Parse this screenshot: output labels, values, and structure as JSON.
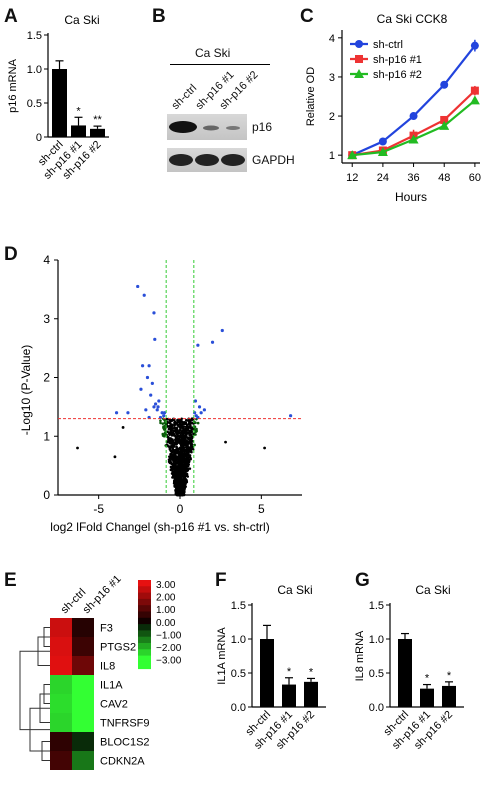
{
  "panels": {
    "A": {
      "letter": "A"
    },
    "B": {
      "letter": "B"
    },
    "C": {
      "letter": "C"
    },
    "D": {
      "letter": "D"
    },
    "E": {
      "letter": "E"
    },
    "F": {
      "letter": "F"
    },
    "G": {
      "letter": "G"
    }
  },
  "blot": {
    "title": "Ca Ski",
    "lanes": [
      "sh-ctrl",
      "sh-p16 #1",
      "sh-p16 #2"
    ],
    "bands": [
      "p16",
      "GAPDH"
    ]
  },
  "colors": {
    "sh_ctrl": "#2244dd",
    "sh_p16_1": "#ee3333",
    "sh_p16_2": "#22bb22"
  },
  "chart_data": [
    {
      "id": "A",
      "type": "bar",
      "title": "Ca Ski",
      "ylabel": "p16 mRNA",
      "xlabel": "",
      "categories": [
        "sh-ctrl",
        "sh-p16 #1",
        "sh-p16 #2"
      ],
      "values": [
        1.0,
        0.17,
        0.12
      ],
      "errors": [
        0.12,
        0.12,
        0.04
      ],
      "significance": [
        "",
        "*",
        "**"
      ],
      "ylim": [
        0,
        1.5
      ],
      "yticks": [
        0,
        0.5,
        1.0,
        1.5
      ],
      "ytick_labels": [
        "0",
        "0.5",
        "1.0",
        "1.5"
      ]
    },
    {
      "id": "C",
      "type": "line",
      "title": "Ca Ski CCK8",
      "xlabel": "Hours",
      "ylabel": "Relative OD",
      "x": [
        12,
        24,
        36,
        48,
        60
      ],
      "xticks": [
        12,
        24,
        36,
        48,
        60
      ],
      "ylim": [
        1,
        4
      ],
      "yticks": [
        1,
        2,
        3,
        4
      ],
      "legend_position": "top-left",
      "series": [
        {
          "name": "sh-ctrl",
          "marker": "circle",
          "values": [
            1.0,
            1.35,
            2.0,
            2.8,
            3.8
          ],
          "errors": [
            0.03,
            0.05,
            0.06,
            0.07,
            0.15
          ]
        },
        {
          "name": "sh-p16 #1",
          "marker": "square",
          "values": [
            1.0,
            1.12,
            1.5,
            1.9,
            2.65
          ],
          "errors": [
            0.03,
            0.06,
            0.15,
            0.1,
            0.12
          ]
        },
        {
          "name": "sh-p16 #2",
          "marker": "triangle",
          "values": [
            1.0,
            1.08,
            1.4,
            1.75,
            2.4
          ],
          "errors": [
            0.03,
            0.05,
            0.06,
            0.07,
            0.08
          ]
        }
      ]
    },
    {
      "id": "D",
      "type": "scatter",
      "title": "",
      "xlabel": "log2 lFold Changel (sh-p16 #1 vs. sh-ctrl)",
      "ylabel": "-Log10 (P-Value)",
      "xlim": [
        -7.5,
        7.5
      ],
      "ylim": [
        0,
        4
      ],
      "xticks": [
        -5,
        0,
        5
      ],
      "yticks": [
        0,
        1,
        2,
        3,
        4
      ],
      "threshold_y": 1.3,
      "threshold_x": [
        -0.85,
        0.85
      ],
      "highlighted_points": [
        [
          -2.6,
          3.55
        ],
        [
          -2.2,
          3.4
        ],
        [
          -1.6,
          3.1
        ],
        [
          -1.9,
          2.2
        ],
        [
          -2.0,
          2.0
        ],
        [
          -2.3,
          2.2
        ],
        [
          -1.7,
          1.9
        ],
        [
          -1.8,
          1.7
        ],
        [
          -2.4,
          1.8
        ],
        [
          -1.5,
          1.55
        ],
        [
          -1.6,
          1.5
        ],
        [
          -1.4,
          1.45
        ],
        [
          -1.1,
          1.4
        ],
        [
          -1.0,
          1.35
        ],
        [
          -0.95,
          1.4
        ],
        [
          -1.2,
          1.32
        ],
        [
          -1.3,
          1.6
        ],
        [
          -1.35,
          1.5
        ],
        [
          -3.2,
          1.4
        ],
        [
          -3.9,
          1.4
        ],
        [
          -1.9,
          1.32
        ],
        [
          -2.1,
          1.45
        ],
        [
          -1.55,
          2.65
        ],
        [
          0.9,
          1.4
        ],
        [
          1.0,
          1.35
        ],
        [
          1.2,
          1.5
        ],
        [
          1.5,
          1.45
        ],
        [
          1.1,
          1.32
        ],
        [
          1.3,
          1.4
        ],
        [
          2.0,
          2.6
        ],
        [
          2.6,
          2.8
        ],
        [
          1.1,
          2.55
        ],
        [
          0.95,
          1.6
        ],
        [
          6.8,
          1.35
        ]
      ],
      "outlier_points": [
        [
          -6.3,
          0.8
        ],
        [
          -3.5,
          1.15
        ],
        [
          -4.0,
          0.65
        ],
        [
          2.8,
          0.9
        ],
        [
          5.2,
          0.8
        ]
      ]
    },
    {
      "id": "E",
      "type": "heatmap",
      "columns": [
        "sh-ctrl",
        "sh-p16 #1"
      ],
      "rows": [
        "F3",
        "PTGS2",
        "IL8",
        "IL1A",
        "CAV2",
        "TNFRSF9",
        "BLOC1S2",
        "CDKN2A"
      ],
      "values": [
        [
          2.6,
          0.3
        ],
        [
          2.8,
          0.6
        ],
        [
          2.9,
          1.3
        ],
        [
          -2.5,
          -3.0
        ],
        [
          -2.6,
          -3.0
        ],
        [
          -2.5,
          -3.0
        ],
        [
          0.4,
          -0.5
        ],
        [
          0.7,
          -1.4
        ]
      ],
      "color_scale": {
        "min": -3,
        "max": 3,
        "low": "#33ff33",
        "mid": "#000000",
        "high": "#ff1111"
      },
      "colorbar_labels": [
        "3.00",
        "2.00",
        "1.00",
        "0.00",
        "−1.00",
        "−2.00",
        "−3.00"
      ]
    },
    {
      "id": "F",
      "type": "bar",
      "title": "Ca Ski",
      "ylabel": "IL1A mRNA",
      "xlabel": "",
      "categories": [
        "sh-ctrl",
        "sh-p16 #1",
        "sh-p16 #2"
      ],
      "values": [
        1.0,
        0.33,
        0.37
      ],
      "errors": [
        0.2,
        0.1,
        0.05
      ],
      "significance": [
        "",
        "*",
        "*"
      ],
      "ylim": [
        0,
        1.5
      ],
      "yticks": [
        0,
        0.5,
        1.0,
        1.5
      ],
      "ytick_labels": [
        "0.0",
        "0.5",
        "1.0",
        "1.5"
      ]
    },
    {
      "id": "G",
      "type": "bar",
      "title": "Ca Ski",
      "ylabel": "IL8 mRNA",
      "xlabel": "",
      "categories": [
        "sh-ctrl",
        "sh-p16 #1",
        "sh-p16 #2"
      ],
      "values": [
        1.0,
        0.27,
        0.31
      ],
      "errors": [
        0.08,
        0.06,
        0.06
      ],
      "significance": [
        "",
        "*",
        "*"
      ],
      "ylim": [
        0,
        1.5
      ],
      "yticks": [
        0,
        0.5,
        1.0,
        1.5
      ],
      "ytick_labels": [
        "0.0",
        "0.5",
        "1.0",
        "1.5"
      ]
    }
  ]
}
